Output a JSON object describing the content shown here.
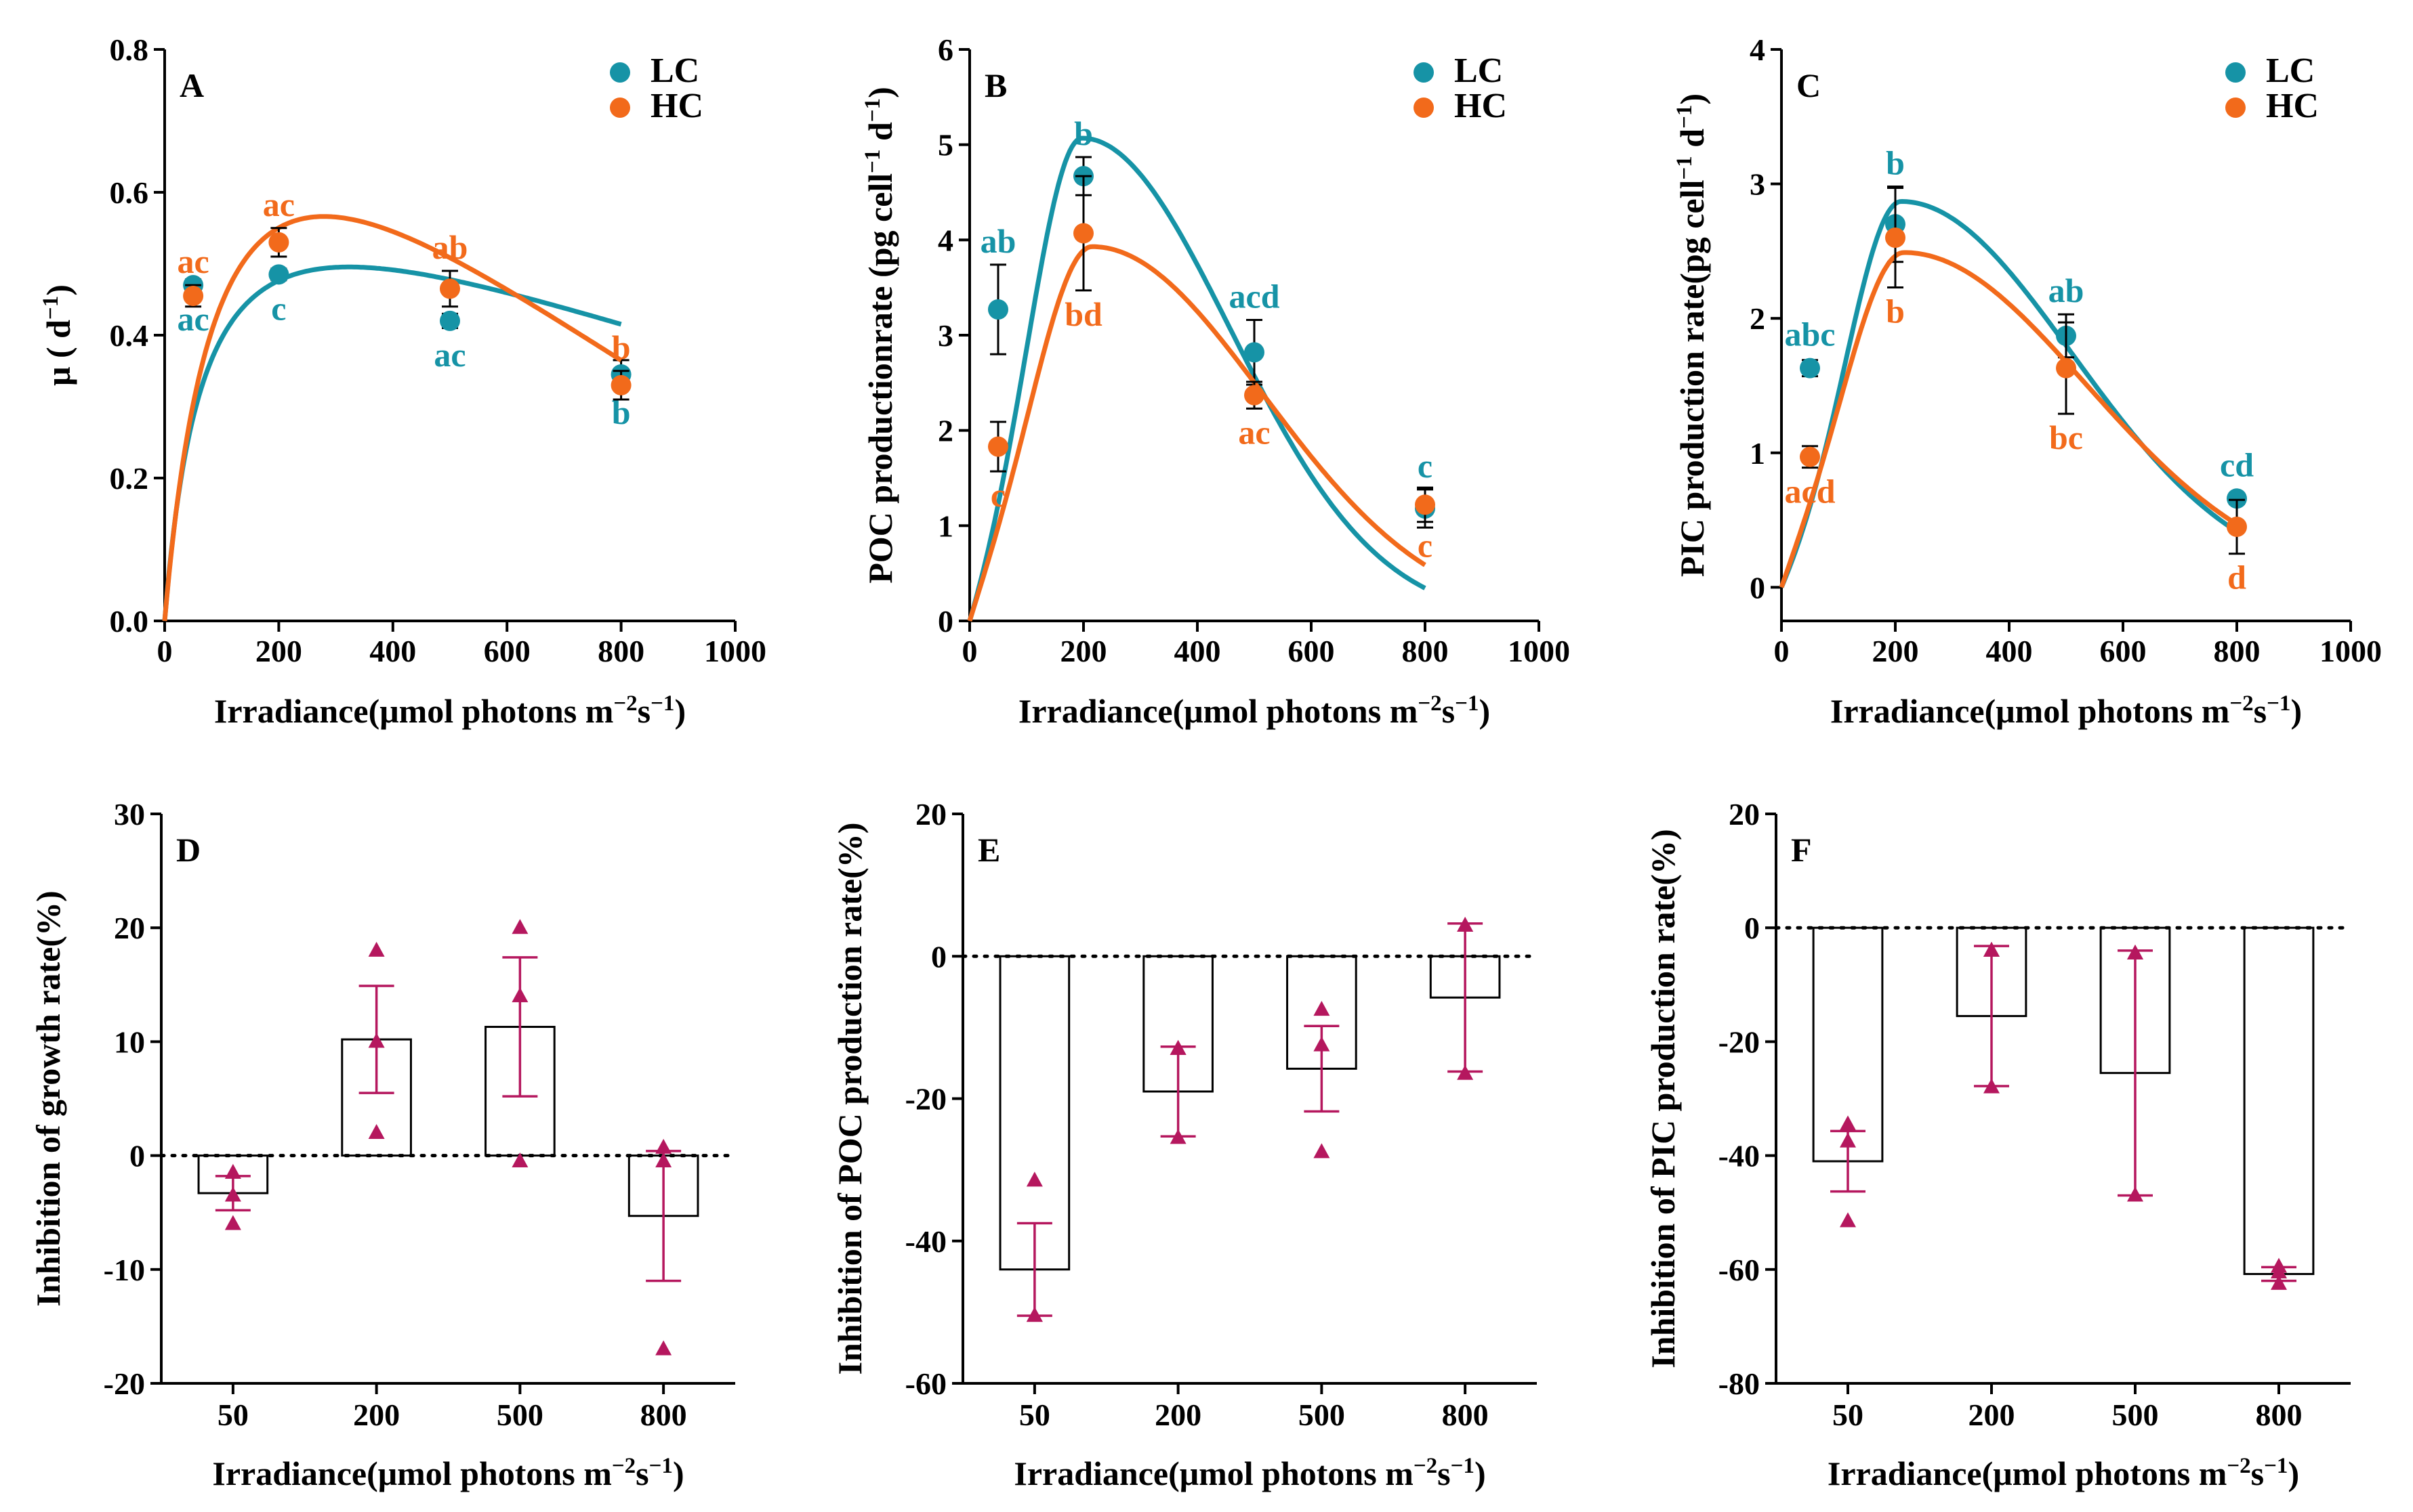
{
  "colors": {
    "lc": "#1693A6",
    "hc": "#F26A1B",
    "inh": "#B5175E",
    "axis": "#000000"
  },
  "chart_data": [
    {
      "type": "scatter",
      "panel": "A",
      "ylabel_parts": [
        "μ ( d",
        "−1",
        ")"
      ],
      "xlabel_parts": [
        "Irradiance(μmol photons m",
        "−2",
        "s",
        "−1",
        ")"
      ],
      "xlim": [
        0,
        1000
      ],
      "ylim": [
        0,
        0.8
      ],
      "xticks": [
        0,
        200,
        400,
        600,
        800,
        1000
      ],
      "yticks": [
        0.0,
        0.2,
        0.4,
        0.6,
        0.8
      ],
      "ytick_labels": [
        "0.0",
        "0.2",
        "0.4",
        "0.6",
        "0.8"
      ],
      "legend": [
        "LC",
        "HC"
      ],
      "series": [
        {
          "name": "LC",
          "points": [
            {
              "x": 50,
              "y": 0.47,
              "err": 0.008,
              "letter": "ac",
              "letter_pos": "below"
            },
            {
              "x": 200,
              "y": 0.485,
              "err": 0.008,
              "letter": "c",
              "letter_pos": "below"
            },
            {
              "x": 500,
              "y": 0.42,
              "err": 0.01,
              "letter": "ac",
              "letter_pos": "below"
            },
            {
              "x": 800,
              "y": 0.345,
              "err": 0.02,
              "letter": "b",
              "letter_pos": "below"
            }
          ],
          "curve": {
            "model": "mp",
            "k": 75,
            "n": 0.00044,
            "m": 0.0001
          }
        },
        {
          "name": "HC",
          "points": [
            {
              "x": 50,
              "y": 0.455,
              "err": 0.015,
              "letter": "ac",
              "letter_pos": "above"
            },
            {
              "x": 200,
              "y": 0.53,
              "err": 0.02,
              "letter": "ac",
              "letter_pos": "above"
            },
            {
              "x": 500,
              "y": 0.465,
              "err": 0.025,
              "letter": "ab",
              "letter_pos": "above"
            },
            {
              "x": 800,
              "y": 0.33,
              "err": 0.02,
              "letter": "b",
              "letter_pos": "above"
            }
          ],
          "curve": {
            "model": "mp",
            "k": 115,
            "n": 0.0007,
            "m": 0.0002
          }
        }
      ]
    },
    {
      "type": "scatter",
      "panel": "B",
      "ylabel_parts": [
        "POC productionrate (pg cell",
        "−1",
        " d",
        "−1",
        ")"
      ],
      "xlabel_parts": [
        "Irradiance(μmol photons m",
        "−2",
        "s",
        "−1",
        ")"
      ],
      "xlim": [
        0,
        1000
      ],
      "ylim": [
        0,
        6
      ],
      "xticks": [
        0,
        200,
        400,
        600,
        800,
        1000
      ],
      "yticks": [
        0,
        1,
        2,
        3,
        4,
        5,
        6
      ],
      "ytick_labels": [
        "0",
        "1",
        "2",
        "3",
        "4",
        "5",
        "6"
      ],
      "legend": [
        "LC",
        "HC"
      ],
      "series": [
        {
          "name": "LC",
          "points": [
            {
              "x": 50,
              "y": 3.27,
              "err": 0.47,
              "letter": "ab",
              "letter_pos": "above"
            },
            {
              "x": 200,
              "y": 4.67,
              "err": 0.2,
              "letter": "b",
              "letter_pos": "above"
            },
            {
              "x": 500,
              "y": 2.82,
              "err": 0.34,
              "letter": "acd",
              "letter_pos": "above"
            },
            {
              "x": 800,
              "y": 1.18,
              "err": 0.2,
              "letter": "c",
              "letter_pos": "above"
            }
          ],
          "curve": {
            "model": "gauss",
            "a": 5.07,
            "x0": 197,
            "sigL": 92,
            "sigR": 260
          }
        },
        {
          "name": "HC",
          "points": [
            {
              "x": 50,
              "y": 1.83,
              "err": 0.26,
              "letter": "c",
              "letter_pos": "below"
            },
            {
              "x": 200,
              "y": 4.07,
              "err": 0.6,
              "letter": "bd",
              "letter_pos": "below"
            },
            {
              "x": 500,
              "y": 2.37,
              "err": 0.14,
              "letter": "ac",
              "letter_pos": "below"
            },
            {
              "x": 800,
              "y": 1.22,
              "err": 0.18,
              "letter": "c",
              "letter_pos": "below"
            }
          ],
          "curve": {
            "model": "gauss",
            "a": 3.93,
            "x0": 215,
            "sigL": 105,
            "sigR": 300
          }
        }
      ]
    },
    {
      "type": "scatter",
      "panel": "C",
      "ylabel_parts": [
        "PIC production rate(pg cell",
        "−1",
        " d",
        "−1",
        ")"
      ],
      "xlabel_parts": [
        "Irradiance(μmol photons m",
        "−2",
        "s",
        "−1",
        ")"
      ],
      "xlim": [
        0,
        1000
      ],
      "ylim": [
        -0.25,
        4
      ],
      "xticks": [
        0,
        200,
        400,
        600,
        800,
        1000
      ],
      "yticks": [
        0,
        1,
        2,
        3,
        4
      ],
      "ytick_labels": [
        "0",
        "1",
        "2",
        "3",
        "4"
      ],
      "legend": [
        "LC",
        "HC"
      ],
      "series": [
        {
          "name": "LC",
          "points": [
            {
              "x": 50,
              "y": 1.63,
              "err": 0.06,
              "letter": "abc",
              "letter_pos": "above"
            },
            {
              "x": 200,
              "y": 2.7,
              "err": 0.28,
              "letter": "b",
              "letter_pos": "above"
            },
            {
              "x": 500,
              "y": 1.87,
              "err": 0.16,
              "letter": "ab",
              "letter_pos": "above"
            },
            {
              "x": 800,
              "y": 0.66,
              "err": 0.04,
              "letter": "cd",
              "letter_pos": "above"
            }
          ],
          "curve": {
            "model": "gauss",
            "a": 2.87,
            "x0": 210,
            "sigL": 95,
            "sigR": 300
          }
        },
        {
          "name": "HC",
          "points": [
            {
              "x": 50,
              "y": 0.97,
              "err": 0.08,
              "letter": "acd",
              "letter_pos": "below"
            },
            {
              "x": 200,
              "y": 2.6,
              "err": 0.37,
              "letter": "b",
              "letter_pos": "below"
            },
            {
              "x": 500,
              "y": 1.63,
              "err": 0.34,
              "letter": "bc",
              "letter_pos": "below"
            },
            {
              "x": 800,
              "y": 0.45,
              "err": 0.2,
              "letter": "d",
              "letter_pos": "below"
            }
          ],
          "curve": {
            "model": "gauss",
            "a": 2.49,
            "x0": 215,
            "sigL": 105,
            "sigR": 320
          }
        }
      ]
    },
    {
      "type": "bar",
      "panel": "D",
      "ylabel": "Inhibition of  growth rate(%)",
      "xlabel_parts": [
        "Irradiance(μmol photons m",
        "−2",
        "s",
        "−1",
        ")"
      ],
      "categories": [
        "50",
        "200",
        "500",
        "800"
      ],
      "values": [
        -3.3,
        10.2,
        11.3,
        -5.3
      ],
      "err": [
        1.5,
        4.7,
        6.1,
        5.7
      ],
      "replicates": [
        [
          -1.5,
          -3.5,
          -6
        ],
        [
          18,
          10,
          2
        ],
        [
          20,
          14,
          -0.5
        ],
        [
          0.7,
          -0.5,
          -17
        ]
      ],
      "ylim": [
        -20,
        30
      ],
      "yticks": [
        -20,
        -10,
        0,
        10,
        20,
        30
      ],
      "ytick_labels": [
        "-20",
        "-10",
        "0",
        "10",
        "20",
        "30"
      ]
    },
    {
      "type": "bar",
      "panel": "E",
      "ylabel": "Inhibition of POC production rate(%)",
      "xlabel_parts": [
        "Irradiance(μmol photons m",
        "−2",
        "s",
        "−1",
        ")"
      ],
      "categories": [
        "50",
        "200",
        "500",
        "800"
      ],
      "values": [
        -44,
        -19,
        -15.8,
        -5.8
      ],
      "err": [
        6.5,
        6.3,
        6,
        10.4
      ],
      "replicates": [
        [
          -31.5,
          -50.5,
          -50.5
        ],
        [
          -13,
          -13,
          -25.5
        ],
        [
          -7.5,
          -12.5,
          -27.5
        ],
        [
          4.3,
          4.3,
          -16.5
        ]
      ],
      "ylim": [
        -60,
        20
      ],
      "yticks": [
        -60,
        -40,
        -20,
        0,
        20
      ],
      "ytick_labels": [
        "-60",
        "-40",
        "-20",
        "0",
        "20"
      ]
    },
    {
      "type": "bar",
      "panel": "F",
      "ylabel": "Inhibition of PIC production rate(%)",
      "xlabel_parts": [
        "Irradiance(μmol photons m",
        "−2",
        "s",
        "−1",
        ")"
      ],
      "categories": [
        "50",
        "200",
        "500",
        "800"
      ],
      "values": [
        -41,
        -15.5,
        -25.5,
        -60.8
      ],
      "err": [
        5.3,
        12.3,
        21.5,
        1.2
      ],
      "replicates": [
        [
          -34.5,
          -37.5,
          -51.5
        ],
        [
          -4,
          -4,
          -28
        ],
        [
          -4.5,
          -4.5,
          -47
        ],
        [
          -59.5,
          -60.5,
          -62.5
        ]
      ],
      "ylim": [
        -80,
        20
      ],
      "yticks": [
        -80,
        -60,
        -40,
        -20,
        0,
        20
      ],
      "ytick_labels": [
        "-80",
        "-60",
        "-40",
        "-20",
        "0",
        "20"
      ]
    }
  ]
}
